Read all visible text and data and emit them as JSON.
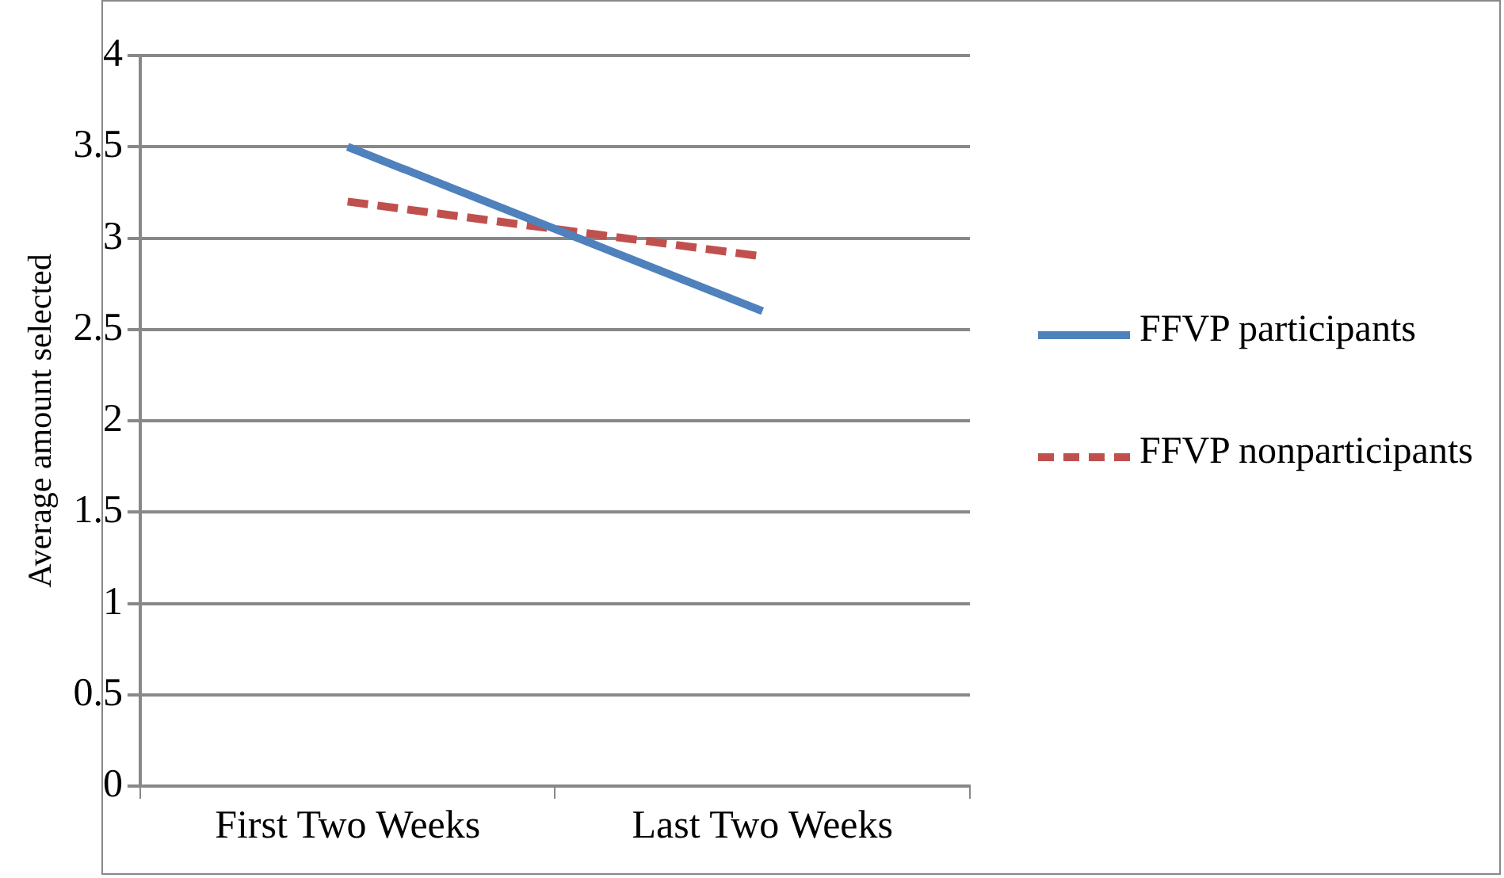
{
  "chart_data": {
    "type": "line",
    "ylabel": "Average amount selected",
    "categories": [
      "First Two Weeks",
      "Last Two Weeks"
    ],
    "series": [
      {
        "name": "FFVP participants",
        "color": "#4f81bd",
        "values": [
          3.5,
          2.6
        ],
        "line_style": "solid"
      },
      {
        "name": "FFVP nonparticipants",
        "color": "#c0504d",
        "values": [
          3.2,
          2.9
        ],
        "line_style": "dashed"
      }
    ],
    "ylim": [
      0,
      4
    ],
    "yticks": [
      0,
      0.5,
      1,
      1.5,
      2,
      2.5,
      3,
      3.5,
      4
    ],
    "grid": "y",
    "legend": "right",
    "marker": "none"
  }
}
